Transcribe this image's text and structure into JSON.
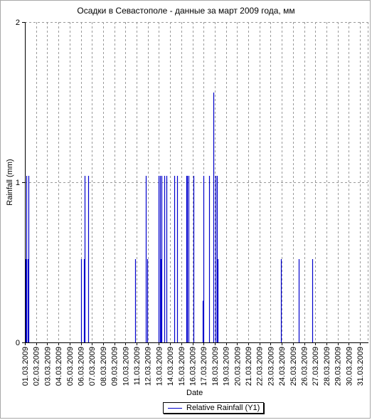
{
  "chart_data": {
    "type": "bar",
    "title": "Осадки в Севастополе - данные за март 2009 года, мм",
    "xlabel": "Date",
    "ylabel": "Rainfall (mm)",
    "ylim": [
      0,
      2
    ],
    "y_ticks": [
      "0",
      "1",
      "2"
    ],
    "x_range_days": [
      1,
      31.7
    ],
    "categories": [
      "01.03.2009",
      "02.03.2009",
      "03.03.2009",
      "04.03.2009",
      "05.03.2009",
      "06.03.2009",
      "07.03.2009",
      "08.03.2009",
      "09.03.2009",
      "10.03.2009",
      "11.03.2009",
      "12.03.2009",
      "13.03.2009",
      "14.03.2009",
      "15.03.2009",
      "16.03.2009",
      "17.03.2009",
      "18.03.2009",
      "19.03.2009",
      "20.03.2009",
      "21.03.2009",
      "22.03.2009",
      "23.03.2009",
      "24.03.2009",
      "25.03.2009",
      "26.03.2009",
      "27.03.2009",
      "28.03.2009",
      "29.03.2009",
      "30.03.2009",
      "31.03.2009"
    ],
    "grid": true,
    "legend_placement": "bottom-center",
    "series": [
      {
        "name": "Relative Rainfall (Y1)",
        "color": "#0000cc",
        "points": [
          {
            "day": 1.05,
            "value": 0.52
          },
          {
            "day": 1.15,
            "value": 1.04
          },
          {
            "day": 1.25,
            "value": 0.52
          },
          {
            "day": 1.35,
            "value": 1.04
          },
          {
            "day": 6.0,
            "value": 0.52
          },
          {
            "day": 6.3,
            "value": 0.52
          },
          {
            "day": 6.35,
            "value": 1.04
          },
          {
            "day": 6.7,
            "value": 1.04
          },
          {
            "day": 10.9,
            "value": 0.52
          },
          {
            "day": 11.85,
            "value": 1.04
          },
          {
            "day": 11.95,
            "value": 0.52
          },
          {
            "day": 13.0,
            "value": 1.04
          },
          {
            "day": 13.1,
            "value": 1.04
          },
          {
            "day": 13.15,
            "value": 0.52
          },
          {
            "day": 13.2,
            "value": 1.04
          },
          {
            "day": 13.5,
            "value": 1.04
          },
          {
            "day": 13.65,
            "value": 1.04
          },
          {
            "day": 14.35,
            "value": 1.04
          },
          {
            "day": 14.6,
            "value": 1.04
          },
          {
            "day": 15.45,
            "value": 1.04
          },
          {
            "day": 15.55,
            "value": 1.04
          },
          {
            "day": 15.65,
            "value": 1.04
          },
          {
            "day": 16.1,
            "value": 1.04
          },
          {
            "day": 16.9,
            "value": 0.26
          },
          {
            "day": 17.0,
            "value": 1.04
          },
          {
            "day": 17.5,
            "value": 1.04
          },
          {
            "day": 17.85,
            "value": 1.56
          },
          {
            "day": 18.1,
            "value": 1.04
          },
          {
            "day": 18.2,
            "value": 1.04
          },
          {
            "day": 18.25,
            "value": 0.52
          },
          {
            "day": 23.9,
            "value": 0.52
          },
          {
            "day": 25.55,
            "value": 0.52
          },
          {
            "day": 26.75,
            "value": 0.52
          }
        ]
      }
    ]
  }
}
